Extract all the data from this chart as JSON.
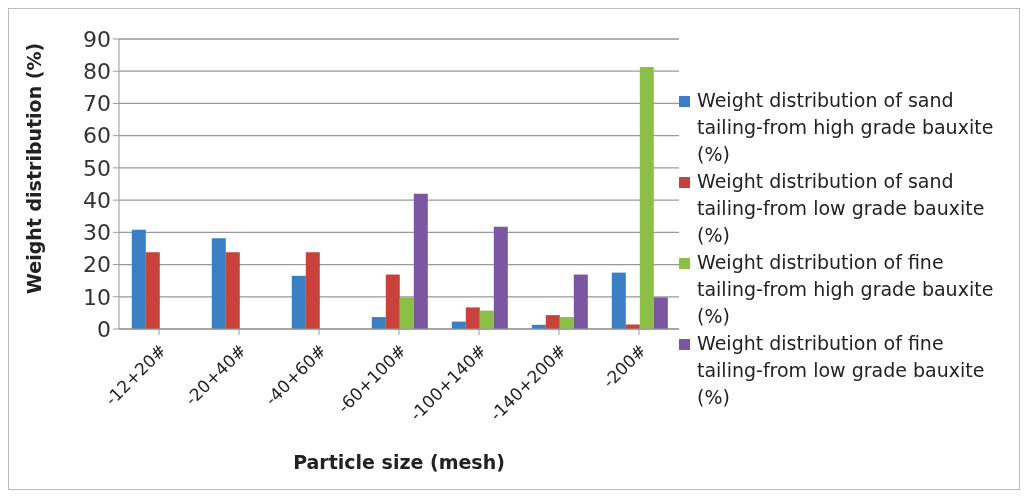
{
  "chart_data": {
    "type": "bar",
    "xlabel": "Particle size (mesh)",
    "ylabel": "Weight distribution  (%)",
    "categories": [
      "-12+20#",
      "-20+40#",
      "-40+60#",
      "-60+100#",
      "-100+140#",
      "-140+200#",
      "-200#"
    ],
    "series": [
      {
        "name": "Weight distribution of sand tailing-from high grade bauxite (%)",
        "color": "#3a7fc4",
        "values": [
          30.8,
          28.2,
          16.5,
          3.7,
          2.3,
          1.3,
          17.5
        ]
      },
      {
        "name": "Weight distribution of sand tailing-from low grade bauxite (%)",
        "color": "#c9413b",
        "values": [
          23.8,
          23.8,
          23.8,
          16.9,
          6.7,
          4.3,
          1.4
        ]
      },
      {
        "name": "Weight distribution of fine tailing-from high grade bauxite (%)",
        "color": "#8cbf45",
        "values": [
          null,
          null,
          null,
          9.8,
          5.7,
          3.7,
          81.3
        ]
      },
      {
        "name": "Weight distribution of fine tailing-from low grade bauxite (%)",
        "color": "#7a56a3",
        "values": [
          null,
          null,
          null,
          42.0,
          31.7,
          16.9,
          9.8
        ]
      }
    ],
    "ylim": [
      0,
      90
    ],
    "yticks": [
      0,
      10,
      20,
      30,
      40,
      50,
      60,
      70,
      80,
      90
    ],
    "grid": "y",
    "legend": "right"
  }
}
